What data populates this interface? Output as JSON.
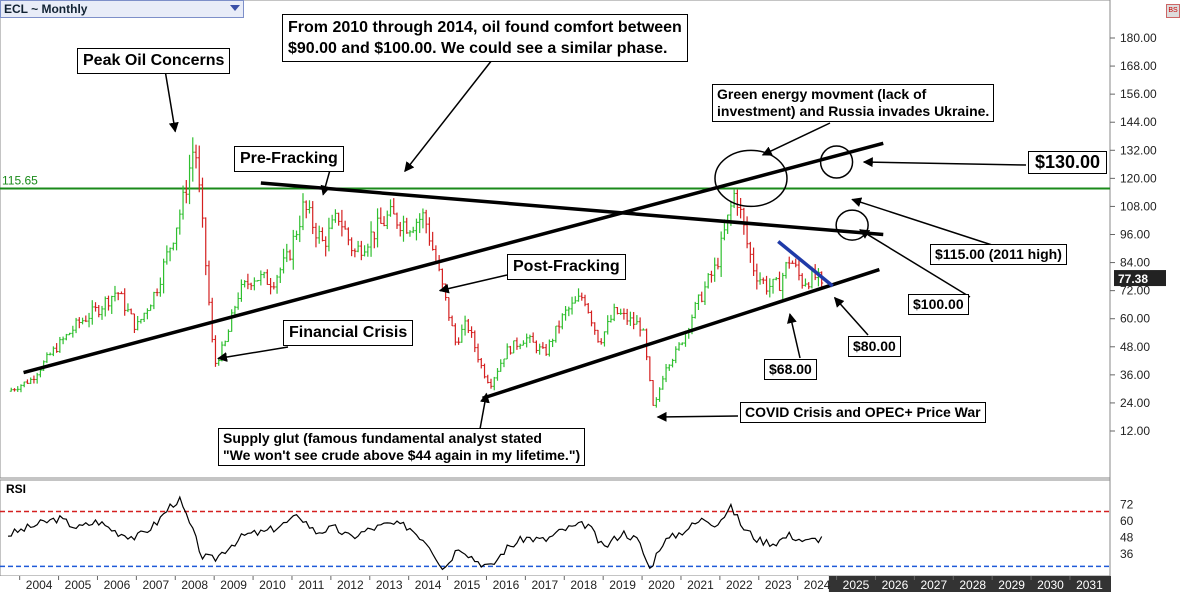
{
  "header": {
    "symbol_label": "ECL ~ Monthly"
  },
  "rsi": {
    "label": "RSI"
  },
  "icons": {
    "symbol_dropdown": "chevron-down-icon",
    "settings": "settings-icon"
  },
  "colors": {
    "up": "#2fbf2f",
    "down": "#d42020",
    "horizontal_line": "#1a8a1a",
    "blue_trend": "#1f3aa8",
    "rsi_upper": "#d42020",
    "rsi_lower": "#1f5ad8",
    "forecast_band": "#333333"
  },
  "chart_data": {
    "type": "candlestick",
    "y_axis": {
      "min": 5,
      "max": 195,
      "ticks": [
        "12.00",
        "24.00",
        "36.00",
        "48.00",
        "60.00",
        "72.00",
        "84.00",
        "96.00",
        "108.00",
        "120.00",
        "132.00",
        "144.00",
        "156.00",
        "168.00",
        "180.00"
      ]
    },
    "x_axis": {
      "labels": [
        "2004",
        "2005",
        "2006",
        "2007",
        "2008",
        "2009",
        "2010",
        "2011",
        "2012",
        "2013",
        "2014",
        "2015",
        "2016",
        "2017",
        "2018",
        "2019",
        "2020",
        "2021",
        "2022",
        "2023",
        "2024",
        "2025",
        "2026",
        "2027",
        "2028",
        "2029",
        "2030",
        "2031"
      ]
    },
    "last_price": "77.38",
    "horizontal_level": {
      "value": 115.65,
      "label": "115.65"
    },
    "price_anchors": [
      [
        2003.7,
        29
      ],
      [
        2004.3,
        34
      ],
      [
        2004.8,
        45
      ],
      [
        2005.5,
        58
      ],
      [
        2006.0,
        64
      ],
      [
        2006.5,
        72
      ],
      [
        2007.0,
        56
      ],
      [
        2007.5,
        72
      ],
      [
        2007.9,
        93
      ],
      [
        2008.2,
        110
      ],
      [
        2008.5,
        136
      ],
      [
        2008.8,
        80
      ],
      [
        2009.0,
        40
      ],
      [
        2009.3,
        50
      ],
      [
        2009.6,
        70
      ],
      [
        2010.0,
        78
      ],
      [
        2010.5,
        76
      ],
      [
        2010.9,
        86
      ],
      [
        2011.3,
        108
      ],
      [
        2011.8,
        92
      ],
      [
        2012.2,
        104
      ],
      [
        2012.6,
        88
      ],
      [
        2013.0,
        95
      ],
      [
        2013.5,
        104
      ],
      [
        2014.0,
        100
      ],
      [
        2014.4,
        104
      ],
      [
        2014.8,
        78
      ],
      [
        2015.2,
        50
      ],
      [
        2015.5,
        58
      ],
      [
        2015.9,
        38
      ],
      [
        2016.1,
        32
      ],
      [
        2016.5,
        46
      ],
      [
        2017.0,
        52
      ],
      [
        2017.5,
        45
      ],
      [
        2018.0,
        62
      ],
      [
        2018.5,
        70
      ],
      [
        2018.9,
        50
      ],
      [
        2019.3,
        63
      ],
      [
        2019.8,
        58
      ],
      [
        2020.0,
        57
      ],
      [
        2020.3,
        20
      ],
      [
        2020.6,
        40
      ],
      [
        2020.9,
        46
      ],
      [
        2021.3,
        62
      ],
      [
        2021.7,
        76
      ],
      [
        2021.9,
        82
      ],
      [
        2022.2,
        102
      ],
      [
        2022.4,
        115
      ],
      [
        2022.7,
        92
      ],
      [
        2022.9,
        80
      ],
      [
        2023.2,
        74
      ],
      [
        2023.5,
        74
      ],
      [
        2023.8,
        86
      ],
      [
        2024.1,
        76
      ],
      [
        2024.5,
        78
      ],
      [
        2024.65,
        71
      ]
    ],
    "rsi_axis": {
      "min": 20,
      "max": 90,
      "ticks": [
        "36",
        "48",
        "60",
        "72"
      ],
      "upper_band": 67,
      "lower_band": 27
    },
    "rsi_anchors": [
      [
        2003.7,
        50
      ],
      [
        2004.5,
        58
      ],
      [
        2005.0,
        62
      ],
      [
        2005.5,
        55
      ],
      [
        2006.0,
        60
      ],
      [
        2006.5,
        52
      ],
      [
        2007.0,
        48
      ],
      [
        2007.5,
        58
      ],
      [
        2007.9,
        72
      ],
      [
        2008.1,
        76
      ],
      [
        2008.4,
        56
      ],
      [
        2008.7,
        34
      ],
      [
        2009.0,
        32
      ],
      [
        2009.4,
        42
      ],
      [
        2009.8,
        50
      ],
      [
        2010.3,
        52
      ],
      [
        2010.8,
        58
      ],
      [
        2011.2,
        64
      ],
      [
        2011.6,
        52
      ],
      [
        2012.1,
        55
      ],
      [
        2012.5,
        48
      ],
      [
        2013.0,
        54
      ],
      [
        2013.5,
        58
      ],
      [
        2014.0,
        56
      ],
      [
        2014.5,
        44
      ],
      [
        2014.9,
        25
      ],
      [
        2015.3,
        42
      ],
      [
        2015.7,
        32
      ],
      [
        2016.1,
        26
      ],
      [
        2016.5,
        40
      ],
      [
        2017.0,
        48
      ],
      [
        2017.5,
        46
      ],
      [
        2018.0,
        54
      ],
      [
        2018.6,
        58
      ],
      [
        2019.0,
        40
      ],
      [
        2019.5,
        52
      ],
      [
        2019.9,
        46
      ],
      [
        2020.2,
        25
      ],
      [
        2020.5,
        44
      ],
      [
        2021.0,
        52
      ],
      [
        2021.6,
        62
      ],
      [
        2021.9,
        58
      ],
      [
        2022.3,
        70
      ],
      [
        2022.6,
        55
      ],
      [
        2023.0,
        46
      ],
      [
        2023.4,
        44
      ],
      [
        2023.8,
        50
      ],
      [
        2024.2,
        45
      ],
      [
        2024.65,
        48
      ]
    ],
    "trend_lines": [
      {
        "name": "pre-fracking-resistance",
        "from": [
          2010.2,
          118
        ],
        "to": [
          2026.2,
          96
        ]
      },
      {
        "name": "long-term-support",
        "from": [
          2004.1,
          37
        ],
        "to": [
          2026.2,
          135
        ]
      },
      {
        "name": "channel-support",
        "from": [
          2015.9,
          26
        ],
        "to": [
          2026.1,
          81
        ]
      },
      {
        "name": "blue-downtrend",
        "from": [
          2023.5,
          93
        ],
        "to": [
          2024.9,
          74
        ],
        "color": "#1f3aa8"
      }
    ],
    "circles": [
      [
        2022.8,
        120
      ],
      [
        2025.0,
        127
      ],
      [
        2025.4,
        100
      ]
    ],
    "annotations": [
      {
        "text": "Peak Oil Concerns",
        "target": [
          2008.0,
          140
        ]
      },
      {
        "text": "From 2010 through 2014, oil found comfort between $90.00 and $100.00. We could see a similar phase.",
        "lines": [
          "From 2010 through 2014, oil found comfort between",
          "$90.00 and $100.00. We could see a similar phase."
        ],
        "target": [
          2013.9,
          123
        ]
      },
      {
        "text": "Pre-Fracking",
        "target": [
          2011.8,
          113
        ]
      },
      {
        "text": "Green energy movment (lack of investment) and Russia invades Ukraine.",
        "lines": [
          "Green energy movment (lack of",
          "investment) and Russia invades Ukraine."
        ],
        "target": [
          2023.1,
          130
        ]
      },
      {
        "text": "$130.00",
        "target": [
          2025.7,
          127
        ]
      },
      {
        "text": "$115.00 (2011 high)",
        "target": [
          2025.4,
          111
        ]
      },
      {
        "text": "Post-Fracking",
        "target": [
          2014.8,
          72
        ]
      },
      {
        "text": "$100.00",
        "target": [
          2025.6,
          98
        ]
      },
      {
        "text": "Financial Crisis",
        "target": [
          2009.1,
          43
        ]
      },
      {
        "text": "$80.00",
        "target": [
          2024.95,
          69
        ]
      },
      {
        "text": "$68.00",
        "target": [
          2023.8,
          62
        ]
      },
      {
        "text": "COVID Crisis and OPEC+ Price War",
        "target": [
          2020.4,
          18
        ]
      },
      {
        "text": "Supply glut (famous fundamental analyst stated \"We won't see crude above $44 again in my lifetime.\")",
        "lines": [
          "Supply glut (famous fundamental analyst stated",
          "\"We won't see crude above $44 again in my lifetime.\")"
        ],
        "target": [
          2016.0,
          28
        ]
      }
    ]
  }
}
